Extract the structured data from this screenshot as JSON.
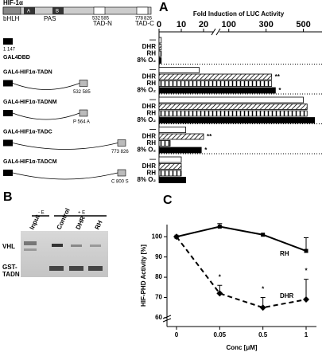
{
  "panel_labels": [
    "A",
    "B",
    "C"
  ],
  "diagram": {
    "protein": "HIF-1α",
    "domains": [
      "bHLH",
      "A",
      "B",
      "PAS"
    ],
    "positions": [
      "532",
      "585",
      "778",
      "826"
    ],
    "tads": [
      "TAD-N",
      "TAD-C"
    ],
    "residues": [
      "1    147",
      "532 585",
      "P 564 A",
      "773 826",
      "C 800 S"
    ]
  },
  "blot": {
    "groups": [
      "- E",
      "+ E"
    ],
    "lanes": [
      "Input",
      "Control",
      "DHR",
      "RH"
    ],
    "bands": [
      "VHL",
      "GST-TADN"
    ]
  },
  "chart_data": [
    {
      "type": "bar",
      "orientation": "horizontal",
      "title": "Fold Induction of LUC Activity",
      "categories": [
        "GAL4DBD",
        "GAL4-HIF1α-TADN",
        "GAL4-HIF1α-TADNM",
        "GAL4-HIF1α-TADC",
        "GAL4-HIF1α-TADCM"
      ],
      "series": [
        {
          "name": "—",
          "color": "#ffffff",
          "pattern": "solid",
          "values": [
            1,
            18,
            500,
            12,
            10
          ]
        },
        {
          "name": "DHR",
          "color": "#ffffff",
          "pattern": "hatch",
          "values": [
            1,
            330,
            520,
            20,
            10
          ],
          "significance": [
            null,
            "**",
            null,
            "**",
            null
          ]
        },
        {
          "name": "RH",
          "color": "#ffffff",
          "pattern": "check",
          "values": [
            1,
            330,
            520,
            5,
            10
          ]
        },
        {
          "name": "8% O₂",
          "color": "#000000",
          "pattern": "solid",
          "values": [
            1,
            350,
            560,
            19,
            12
          ],
          "significance": [
            null,
            "*",
            null,
            "*",
            null
          ]
        }
      ],
      "xlim": [
        0,
        600
      ],
      "axis_break": [
        25,
        50
      ],
      "xticks": [
        0,
        10,
        20,
        100,
        300,
        500
      ]
    },
    {
      "type": "line",
      "ylabel": "HIF-PHD Activity [%]",
      "xlabel": "Conc [μM]",
      "categories": [
        "0",
        "0.05",
        "0.5",
        "1"
      ],
      "series": [
        {
          "name": "RH",
          "color": "#000000",
          "dash": false,
          "values": [
            100,
            105,
            101,
            93
          ],
          "errors": [
            null,
            1.5,
            null,
            6.5
          ]
        },
        {
          "name": "DHR",
          "color": "#000000",
          "dash": true,
          "values": [
            100,
            72,
            65,
            69
          ],
          "errors": [
            null,
            4,
            5,
            10
          ],
          "significance": [
            null,
            "*",
            "*",
            "*"
          ]
        }
      ],
      "ylim": [
        58,
        106
      ],
      "yticks": [
        60,
        70,
        80,
        90,
        100
      ],
      "y_break": true
    }
  ]
}
